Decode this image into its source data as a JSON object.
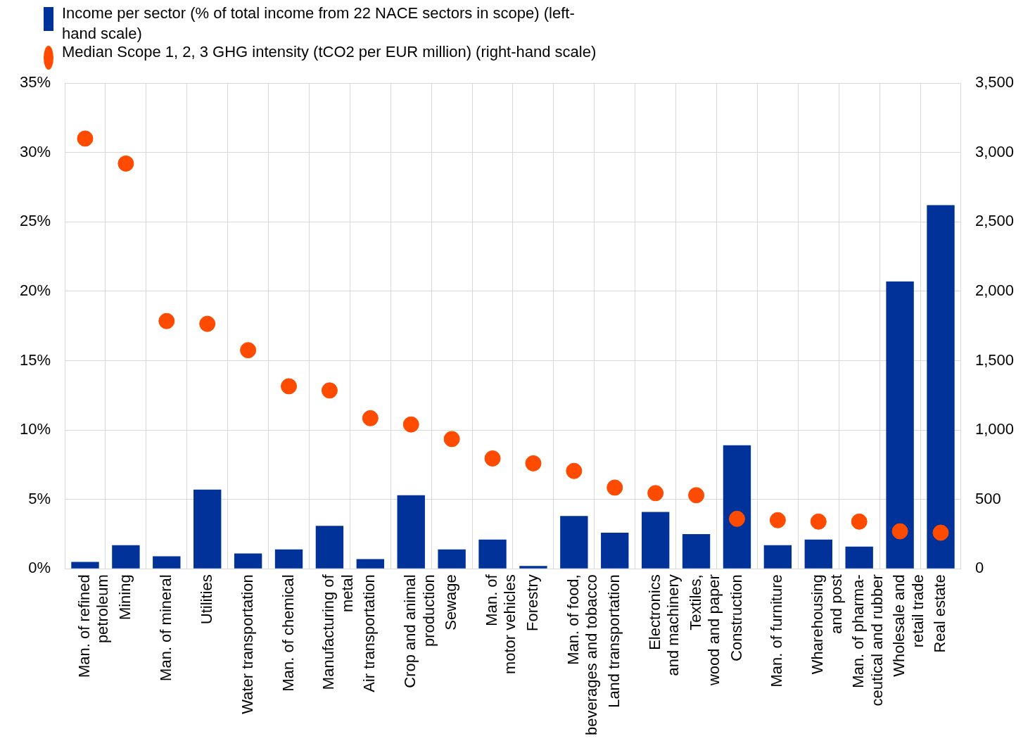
{
  "chart_data": {
    "type": "bar",
    "categories": [
      "Man. of refined\npetroleum",
      "Mining",
      "Man. of mineral",
      "Utilities",
      "Water transportation",
      "Man. of chemical",
      "Manufacturing of\nmetal",
      "Air transportation",
      "Crop and animal\nproduction",
      "Sewage",
      "Man. of\nmotor vehicles",
      "Forestry",
      "Man. of food,\nbeverages and tobacco",
      "Land transportation",
      "Electronics\nand machinery",
      "Textiles,\nwood and paper",
      "Construction",
      "Man. of furniture",
      "Wharehousing\nand post",
      "Man. of pharma-\nceutical and rubber",
      "Wholesale and\nretail trade",
      "Real estate"
    ],
    "series": [
      {
        "name": "Income per sector (% of total income from 22 NACE sectors in scope) (left-hand scale)",
        "color": "#003299",
        "values": [
          0.5,
          1.7,
          0.9,
          5.7,
          1.1,
          1.4,
          3.1,
          0.7,
          5.3,
          1.4,
          2.1,
          0.2,
          3.8,
          2.6,
          4.1,
          2.5,
          8.9,
          1.7,
          2.1,
          1.6,
          20.7,
          26.2
        ]
      },
      {
        "name": "Median Scope 1, 2, 3 GHG intensity (tCO2 per EUR million) (right-hand scale)",
        "type": "scatter",
        "axis": "y2",
        "color": "#ff4b00",
        "values": [
          3100,
          2920,
          1785,
          1765,
          1575,
          1315,
          1285,
          1085,
          1040,
          935,
          795,
          760,
          705,
          585,
          545,
          530,
          360,
          350,
          340,
          340,
          270,
          260
        ]
      }
    ],
    "ylim": [
      0,
      35
    ],
    "yticks": [
      {
        "value": 0,
        "label": "0%"
      },
      {
        "value": 5,
        "label": "5%"
      },
      {
        "value": 10,
        "label": "10%"
      },
      {
        "value": 15,
        "label": "15%"
      },
      {
        "value": 20,
        "label": "20%"
      },
      {
        "value": 25,
        "label": "25%"
      },
      {
        "value": 30,
        "label": "30%"
      },
      {
        "value": 35,
        "label": "35%"
      }
    ],
    "y2lim": [
      0,
      3500
    ],
    "y2ticks": [
      0,
      {
        "value": 500,
        "label": "500"
      },
      {
        "value": 1000,
        "label": "1,000"
      },
      {
        "value": 1500,
        "label": "1,500"
      },
      {
        "value": 2000,
        "label": "2,000"
      },
      {
        "value": 2500,
        "label": "2,500"
      },
      {
        "value": 3000,
        "label": "3,000"
      },
      {
        "value": 3500,
        "label": "3,500"
      }
    ],
    "grid": true,
    "legend": "top left",
    "marker": "circle"
  }
}
